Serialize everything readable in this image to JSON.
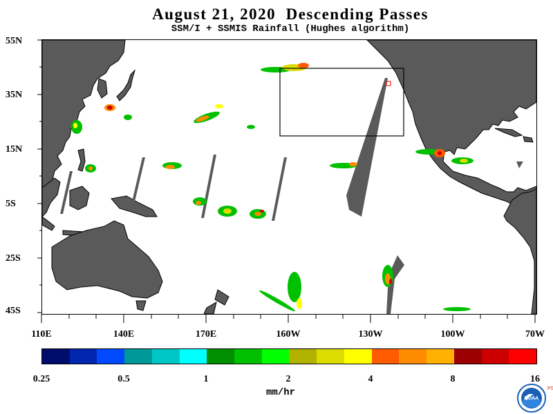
{
  "header": {
    "title": "August 21, 2020  Descending Passes",
    "subtitle": "SSM/I + SSMIS Rainfall (Hughes algorithm)"
  },
  "map": {
    "lat_labels": [
      "55N",
      "35N",
      "15N",
      "5S",
      "25S",
      "45S"
    ],
    "lon_labels": [
      "110E",
      "140E",
      "170E",
      "160W",
      "130W",
      "100W",
      "70W"
    ],
    "land_color": "#5a5a5a",
    "no_data_color": "#5a5a5a",
    "box_color": "#000000"
  },
  "colorbar": {
    "colors": [
      "#000c6b",
      "#0026b0",
      "#0049ff",
      "#00999a",
      "#00c7c7",
      "#00ffff",
      "#008f00",
      "#00c000",
      "#00ff00",
      "#b2b200",
      "#dcdc00",
      "#ffff00",
      "#ff5b00",
      "#ff8c00",
      "#ffb000",
      "#9c0000",
      "#cc0000",
      "#ff0000"
    ],
    "labels": [
      "0.25",
      "0.5",
      "1",
      "2",
      "4",
      "8",
      "16"
    ],
    "units": "mm/hr"
  },
  "logo": {
    "agency_text": "NOAA",
    "side_text": "PSL"
  }
}
